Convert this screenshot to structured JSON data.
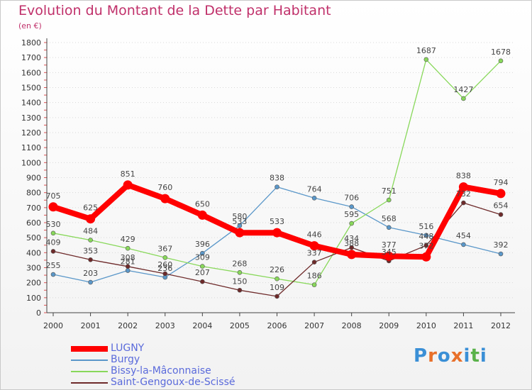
{
  "title": "Evolution du Montant de la Dette par Habitant",
  "subtitle": "(en €)",
  "brand": {
    "letters": [
      "P",
      "r",
      "o",
      "x",
      "i",
      "t",
      "i"
    ],
    "colors": [
      "#3a8fd6",
      "#e8702a",
      "#3a8fd6",
      "#e8702a",
      "#3a8fd6",
      "#5ab24a",
      "#3a8fd6"
    ]
  },
  "chart_data": {
    "type": "line",
    "title": "Evolution du Montant de la Dette par Habitant",
    "ylabel": "(en €)",
    "ylim": [
      0,
      1800
    ],
    "yticks": [
      0,
      100,
      200,
      300,
      400,
      500,
      600,
      700,
      800,
      900,
      1000,
      1100,
      1200,
      1300,
      1400,
      1500,
      1600,
      1700,
      1800
    ],
    "categories": [
      "2000",
      "2001",
      "2002",
      "2003",
      "2004",
      "2005",
      "2006",
      "2007",
      "2008",
      "2009",
      "2010",
      "2011",
      "2012"
    ],
    "grid": "horizontal dotted",
    "legend": "bottom-left",
    "series": [
      {
        "name": "LUGNY",
        "color": "#ff0000",
        "values": [
          705,
          625,
          851,
          760,
          650,
          533,
          533,
          446,
          388,
          377,
          372,
          838,
          794
        ],
        "labels": [
          "705",
          "625",
          "851",
          "760",
          "650",
          "533",
          "533",
          "446",
          "388",
          "377",
          "372",
          "838",
          "794"
        ]
      },
      {
        "name": "Burgy",
        "color": "#5a97c9",
        "values": [
          255,
          203,
          281,
          236,
          396,
          580,
          838,
          764,
          706,
          568,
          516,
          454,
          392
        ],
        "labels": [
          "255",
          "203",
          "281",
          "236",
          "396",
          "580",
          "838",
          "764",
          "706",
          "568",
          "516",
          "454",
          "392"
        ]
      },
      {
        "name": "Bissy-la-Mâconnaise",
        "color": "#88d85a",
        "values": [
          530,
          484,
          429,
          367,
          309,
          268,
          226,
          186,
          595,
          751,
          1687,
          1427,
          1678
        ],
        "labels": [
          "530",
          "484",
          "429",
          "367",
          "309",
          "268",
          "226",
          "186",
          "595",
          "751",
          "1687",
          "1427",
          "1678"
        ]
      },
      {
        "name": "Saint-Gengoux-de-Scissé",
        "color": "#6e2a2a",
        "values": [
          409,
          353,
          308,
          260,
          207,
          150,
          109,
          337,
          434,
          345,
          448,
          732,
          654
        ],
        "labels": [
          "409",
          "353",
          "308",
          "260",
          "207",
          "150",
          "109",
          "337",
          "434",
          "345",
          "448",
          "732",
          "654"
        ]
      }
    ]
  }
}
